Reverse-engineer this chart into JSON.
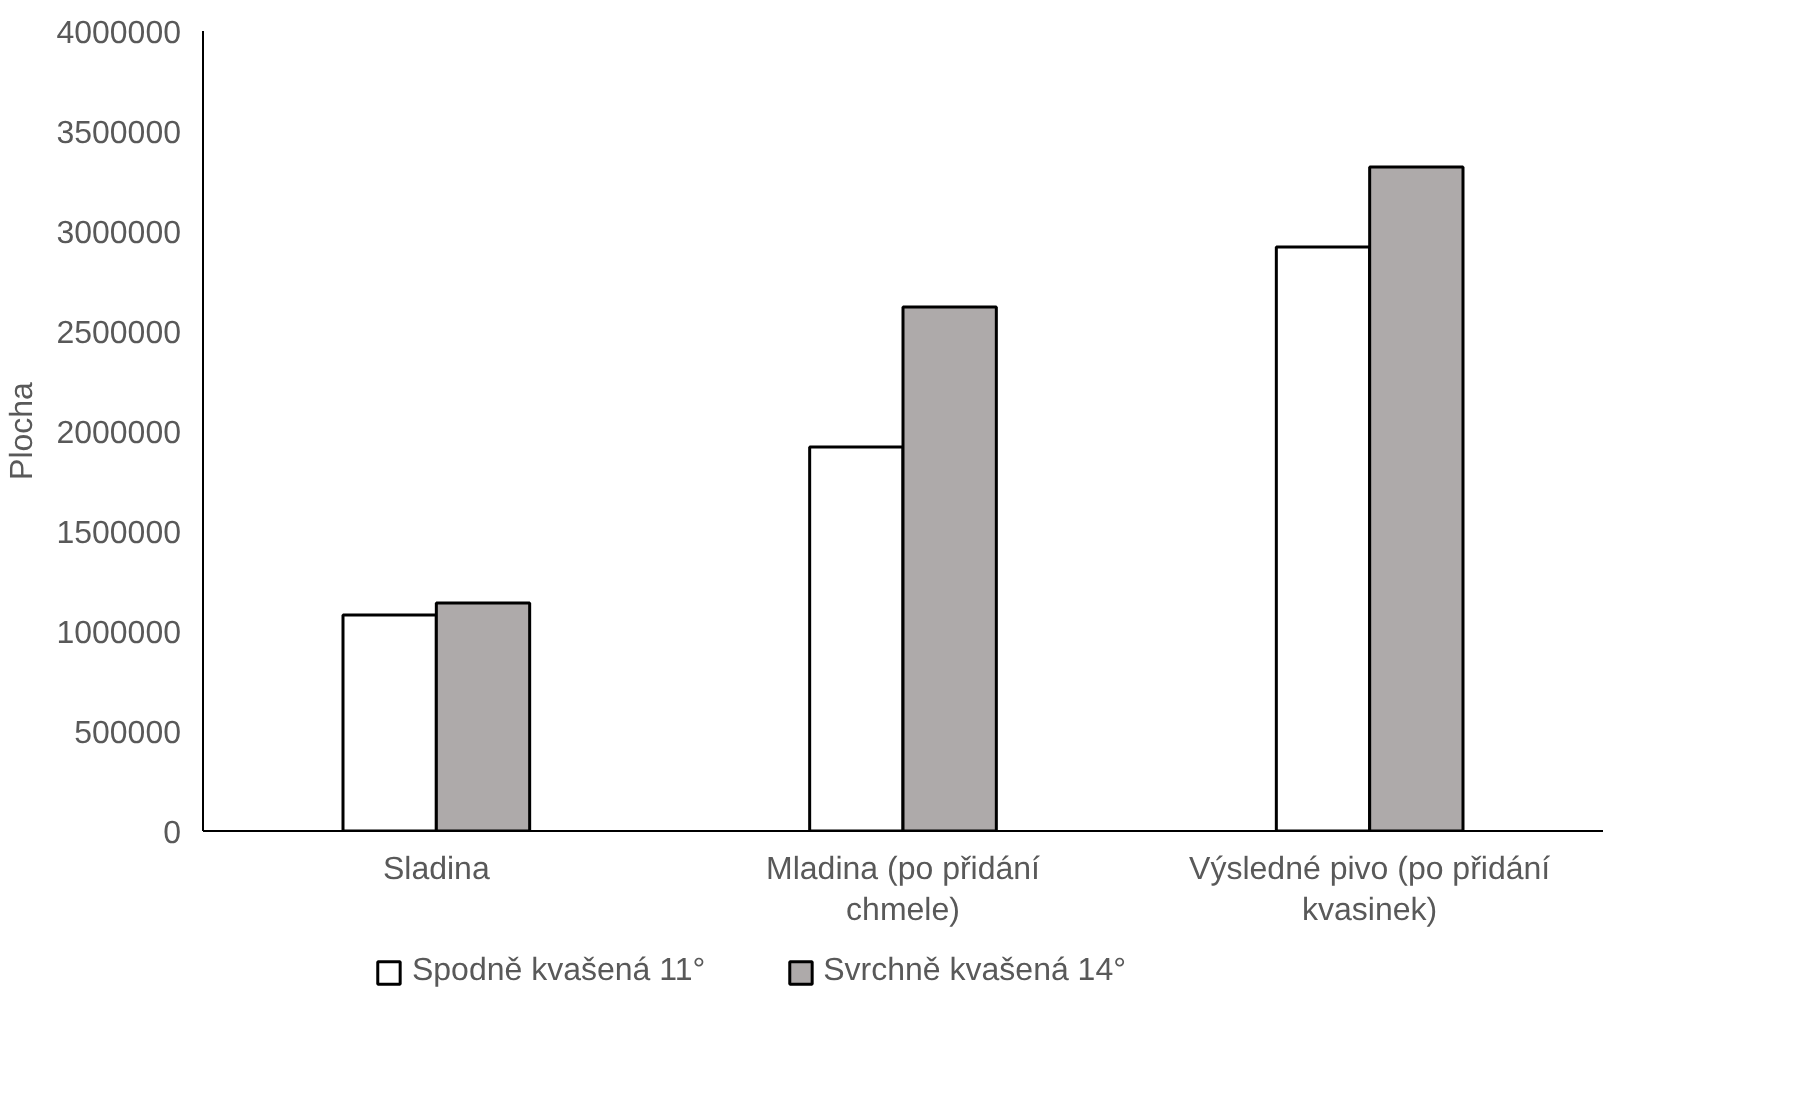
{
  "chart_data": {
    "type": "bar",
    "ylabel": "Plocha",
    "categories": [
      "Sladina",
      "Mladina (po přidání chmele)",
      "Výsledné pivo (po přidání kvasinek)"
    ],
    "series": [
      {
        "name": "Spodně kvašená 11°",
        "color": "#ffffff",
        "values": [
          1080000,
          1920000,
          2920000
        ]
      },
      {
        "name": "Svrchně kvašená 14°",
        "color": "#aeaaaa",
        "values": [
          1140000,
          2620000,
          3320000
        ]
      }
    ],
    "ylim": [
      0,
      4000000
    ],
    "yticks": [
      0,
      500000,
      1000000,
      1500000,
      2000000,
      2500000,
      3000000,
      3500000,
      4000000
    ],
    "grid": false,
    "legend": "bottom"
  }
}
